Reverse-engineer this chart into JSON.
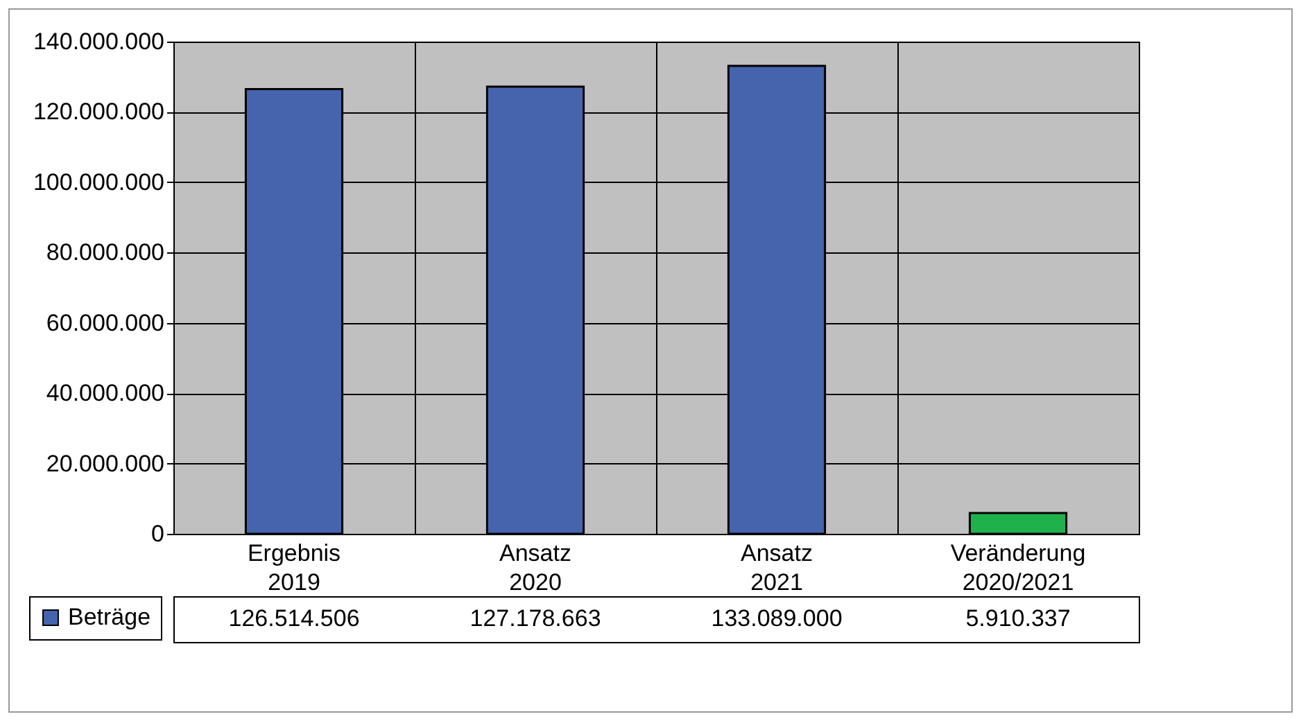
{
  "chart_data": {
    "type": "bar",
    "categories": [
      "Ergebnis 2019",
      "Ansatz 2020",
      "Ansatz 2021",
      "Veränderung 2020/2021"
    ],
    "series": [
      {
        "name": "Beträge",
        "color": "#4664ad",
        "colors": [
          "#4664ad",
          "#4664ad",
          "#4664ad",
          "#1fb14c"
        ],
        "values": [
          126514506,
          127178663,
          133089000,
          5910337
        ],
        "value_labels": [
          "126.514.506",
          "127.178.663",
          "133.089.000",
          "5.910.337"
        ]
      }
    ],
    "ylim": [
      0,
      140000000
    ],
    "yticks": [
      0,
      {
        "value": 20000000,
        "label": "20.000.000"
      },
      {
        "value": 40000000,
        "label": "40.000.000"
      },
      {
        "value": 60000000,
        "label": "60.000.000"
      },
      {
        "value": 80000000,
        "label": "80.000.000"
      },
      {
        "value": 100000000,
        "label": "100.000.000"
      },
      {
        "value": 120000000,
        "label": "120.000.000"
      },
      {
        "value": 140000000,
        "label": "140.000.000"
      }
    ],
    "grid": "y",
    "legend": "bottom left"
  }
}
